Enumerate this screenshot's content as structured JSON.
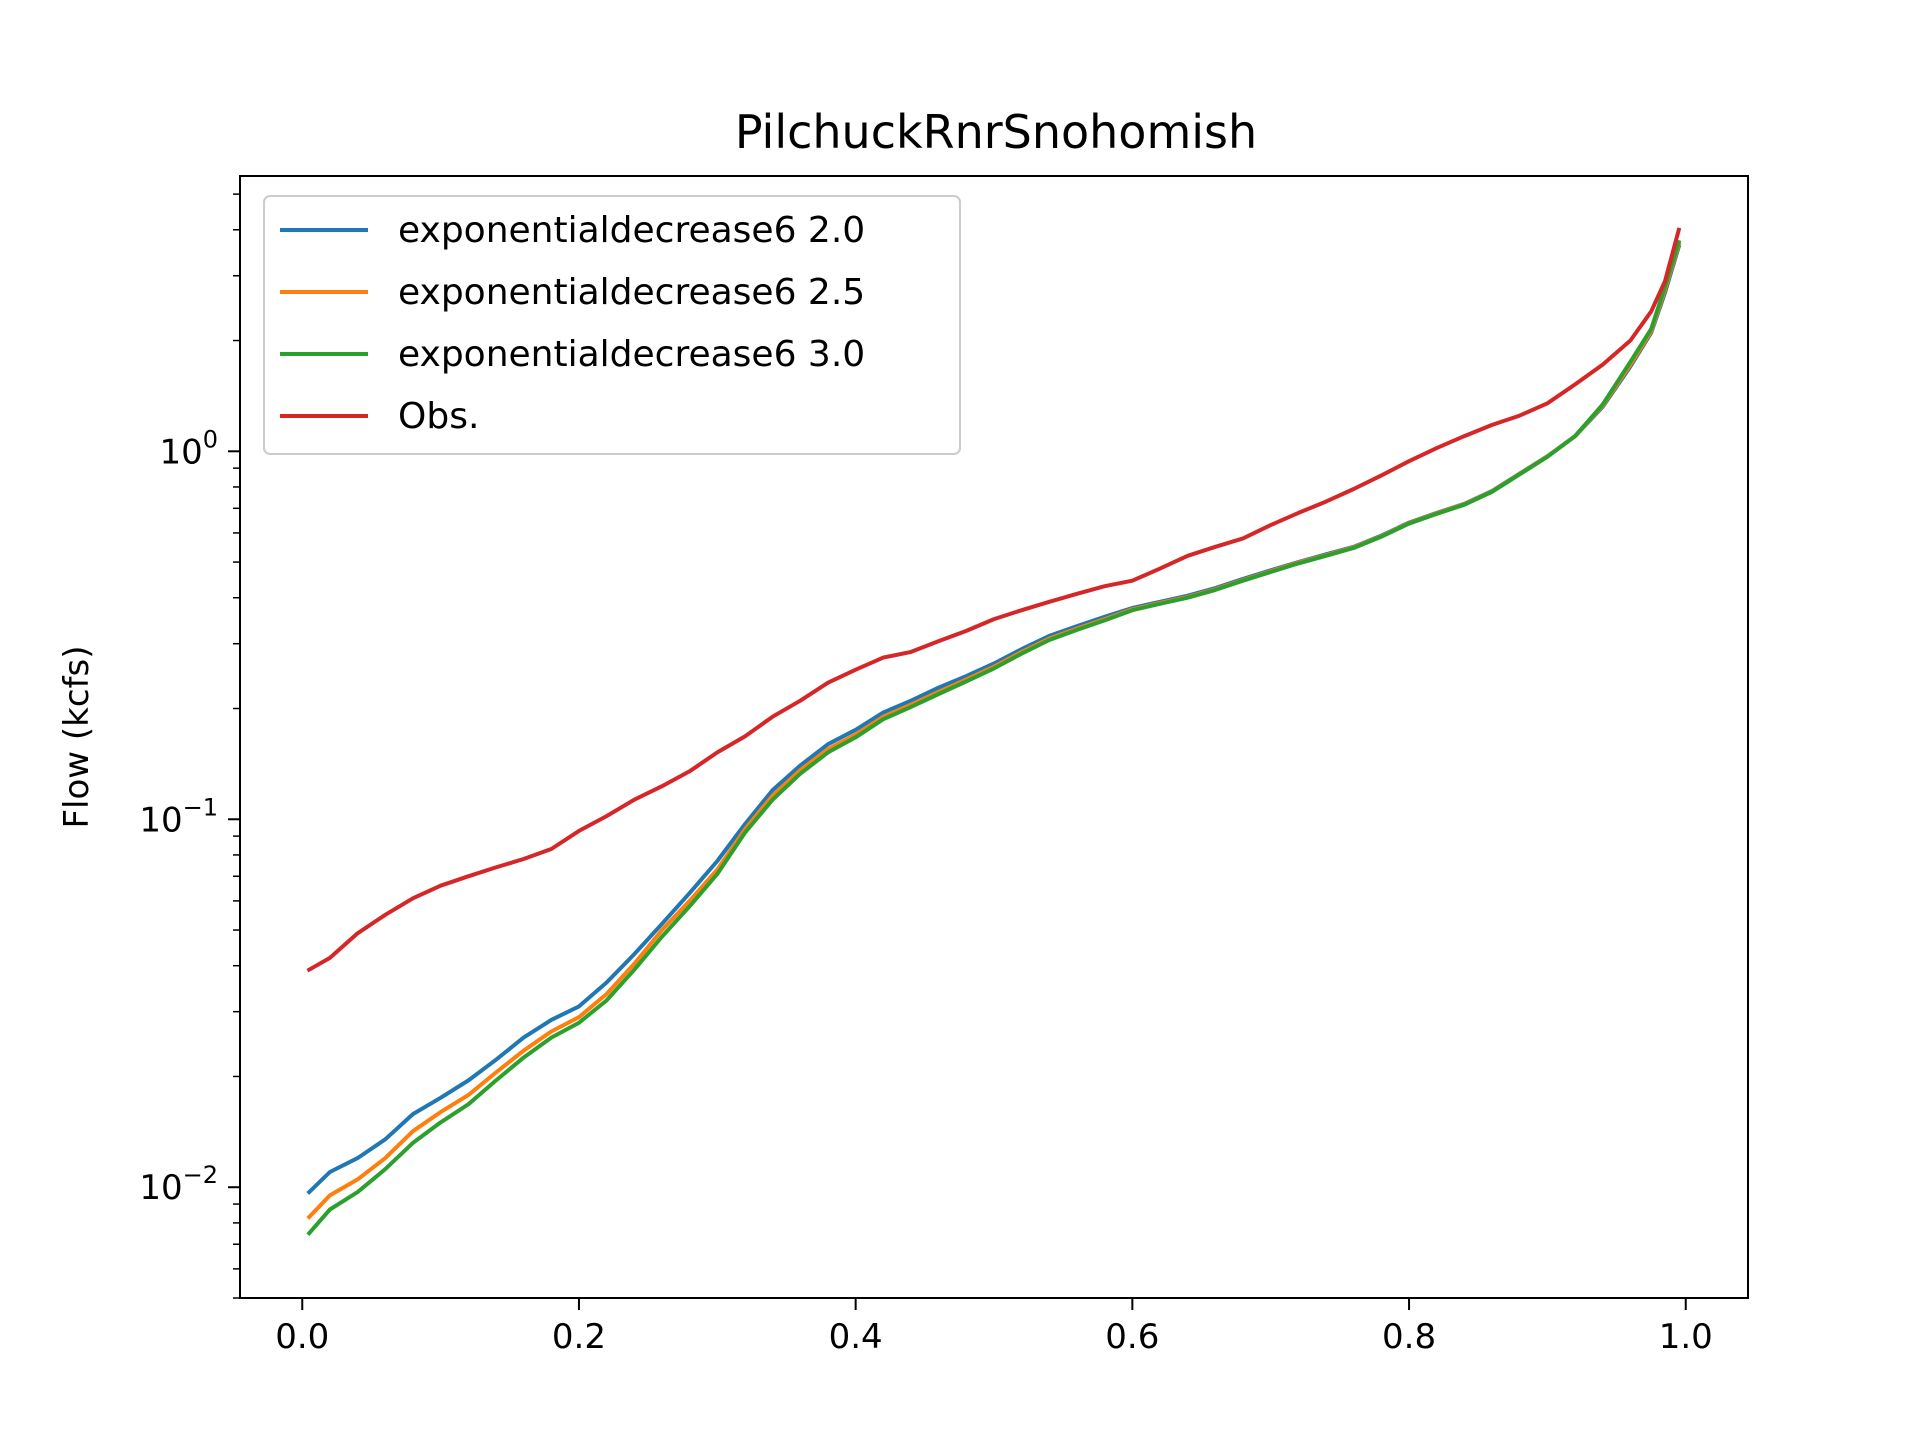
{
  "chart_data": {
    "type": "line",
    "title": "PilchuckRnrSnohomish",
    "xlabel": "",
    "ylabel": "Flow (kcfs)",
    "xlim": [
      -0.045,
      1.045
    ],
    "ylim": [
      0.005,
      5.6
    ],
    "yscale": "log",
    "grid": false,
    "legend_position": "top-left",
    "x_ticks": [
      {
        "value": 0.0,
        "label": "0.0"
      },
      {
        "value": 0.2,
        "label": "0.2"
      },
      {
        "value": 0.4,
        "label": "0.4"
      },
      {
        "value": 0.6,
        "label": "0.6"
      },
      {
        "value": 0.8,
        "label": "0.8"
      },
      {
        "value": 1.0,
        "label": "1.0"
      }
    ],
    "y_ticks": [
      {
        "value": 0.01,
        "base": "10",
        "exponent": "−2"
      },
      {
        "value": 0.1,
        "base": "10",
        "exponent": "−1"
      },
      {
        "value": 1,
        "base": "10",
        "exponent": "0"
      }
    ],
    "series": [
      {
        "name": "exponentialdecrease6 2.0",
        "color": "#1f77b4",
        "x": [
          0.005,
          0.02,
          0.04,
          0.06,
          0.08,
          0.1,
          0.12,
          0.14,
          0.16,
          0.18,
          0.2,
          0.22,
          0.24,
          0.26,
          0.28,
          0.3,
          0.32,
          0.34,
          0.36,
          0.38,
          0.4,
          0.42,
          0.44,
          0.46,
          0.48,
          0.5,
          0.52,
          0.54,
          0.56,
          0.58,
          0.6,
          0.62,
          0.64,
          0.66,
          0.68,
          0.7,
          0.72,
          0.74,
          0.76,
          0.78,
          0.8,
          0.82,
          0.84,
          0.86,
          0.88,
          0.9,
          0.92,
          0.94,
          0.96,
          0.975,
          0.985,
          0.995
        ],
        "values": [
          0.0097,
          0.011,
          0.012,
          0.0135,
          0.0158,
          0.0175,
          0.0195,
          0.0222,
          0.0255,
          0.0285,
          0.031,
          0.036,
          0.043,
          0.052,
          0.063,
          0.077,
          0.097,
          0.12,
          0.14,
          0.16,
          0.175,
          0.195,
          0.21,
          0.228,
          0.245,
          0.265,
          0.29,
          0.315,
          0.335,
          0.355,
          0.375,
          0.39,
          0.405,
          0.425,
          0.45,
          0.475,
          0.5,
          0.525,
          0.55,
          0.59,
          0.64,
          0.68,
          0.72,
          0.78,
          0.87,
          0.97,
          1.1,
          1.32,
          1.7,
          2.1,
          2.7,
          3.6
        ]
      },
      {
        "name": "exponentialdecrease6 2.5",
        "color": "#ff7f0e",
        "x": [
          0.005,
          0.02,
          0.04,
          0.06,
          0.08,
          0.1,
          0.12,
          0.14,
          0.16,
          0.18,
          0.2,
          0.22,
          0.24,
          0.26,
          0.28,
          0.3,
          0.32,
          0.34,
          0.36,
          0.38,
          0.4,
          0.42,
          0.44,
          0.46,
          0.48,
          0.5,
          0.52,
          0.54,
          0.56,
          0.58,
          0.6,
          0.62,
          0.64,
          0.66,
          0.68,
          0.7,
          0.72,
          0.74,
          0.76,
          0.78,
          0.8,
          0.82,
          0.84,
          0.86,
          0.88,
          0.9,
          0.92,
          0.94,
          0.96,
          0.975,
          0.985,
          0.995
        ],
        "values": [
          0.0083,
          0.0095,
          0.0105,
          0.012,
          0.0142,
          0.016,
          0.0178,
          0.0205,
          0.0235,
          0.0265,
          0.029,
          0.0335,
          0.0405,
          0.05,
          0.06,
          0.073,
          0.094,
          0.116,
          0.136,
          0.155,
          0.17,
          0.19,
          0.205,
          0.222,
          0.24,
          0.26,
          0.285,
          0.31,
          0.33,
          0.35,
          0.372,
          0.387,
          0.402,
          0.422,
          0.447,
          0.472,
          0.498,
          0.522,
          0.548,
          0.588,
          0.638,
          0.678,
          0.718,
          0.778,
          0.868,
          0.968,
          1.1,
          1.33,
          1.72,
          2.12,
          2.75,
          3.65
        ]
      },
      {
        "name": "exponentialdecrease6 3.0",
        "color": "#2ca02c",
        "x": [
          0.005,
          0.02,
          0.04,
          0.06,
          0.08,
          0.1,
          0.12,
          0.14,
          0.16,
          0.18,
          0.2,
          0.22,
          0.24,
          0.26,
          0.28,
          0.3,
          0.32,
          0.34,
          0.36,
          0.38,
          0.4,
          0.42,
          0.44,
          0.46,
          0.48,
          0.5,
          0.52,
          0.54,
          0.56,
          0.58,
          0.6,
          0.62,
          0.64,
          0.66,
          0.68,
          0.7,
          0.72,
          0.74,
          0.76,
          0.78,
          0.8,
          0.82,
          0.84,
          0.86,
          0.88,
          0.9,
          0.92,
          0.94,
          0.96,
          0.975,
          0.985,
          0.995
        ],
        "values": [
          0.0075,
          0.0087,
          0.0097,
          0.0112,
          0.0132,
          0.015,
          0.0168,
          0.0195,
          0.0225,
          0.0255,
          0.028,
          0.0322,
          0.039,
          0.048,
          0.058,
          0.071,
          0.092,
          0.113,
          0.133,
          0.152,
          0.167,
          0.187,
          0.202,
          0.219,
          0.237,
          0.257,
          0.282,
          0.307,
          0.327,
          0.347,
          0.37,
          0.385,
          0.4,
          0.42,
          0.445,
          0.47,
          0.496,
          0.52,
          0.546,
          0.586,
          0.636,
          0.676,
          0.716,
          0.776,
          0.866,
          0.966,
          1.1,
          1.34,
          1.75,
          2.15,
          2.8,
          3.7
        ]
      },
      {
        "name": "Obs.",
        "color": "#d62728",
        "x": [
          0.005,
          0.02,
          0.04,
          0.06,
          0.08,
          0.1,
          0.12,
          0.14,
          0.16,
          0.18,
          0.2,
          0.22,
          0.24,
          0.26,
          0.28,
          0.3,
          0.32,
          0.34,
          0.36,
          0.38,
          0.4,
          0.42,
          0.44,
          0.46,
          0.48,
          0.5,
          0.52,
          0.54,
          0.56,
          0.58,
          0.6,
          0.62,
          0.64,
          0.66,
          0.68,
          0.7,
          0.72,
          0.74,
          0.76,
          0.78,
          0.8,
          0.82,
          0.84,
          0.86,
          0.88,
          0.9,
          0.92,
          0.94,
          0.96,
          0.975,
          0.985,
          0.995
        ],
        "values": [
          0.039,
          0.042,
          0.049,
          0.055,
          0.061,
          0.066,
          0.07,
          0.074,
          0.078,
          0.083,
          0.093,
          0.102,
          0.113,
          0.123,
          0.135,
          0.152,
          0.168,
          0.19,
          0.21,
          0.235,
          0.255,
          0.275,
          0.285,
          0.305,
          0.325,
          0.35,
          0.37,
          0.39,
          0.41,
          0.43,
          0.445,
          0.48,
          0.52,
          0.55,
          0.58,
          0.63,
          0.68,
          0.73,
          0.79,
          0.86,
          0.94,
          1.02,
          1.1,
          1.18,
          1.25,
          1.35,
          1.52,
          1.72,
          2.0,
          2.4,
          2.9,
          4.0
        ]
      }
    ]
  }
}
